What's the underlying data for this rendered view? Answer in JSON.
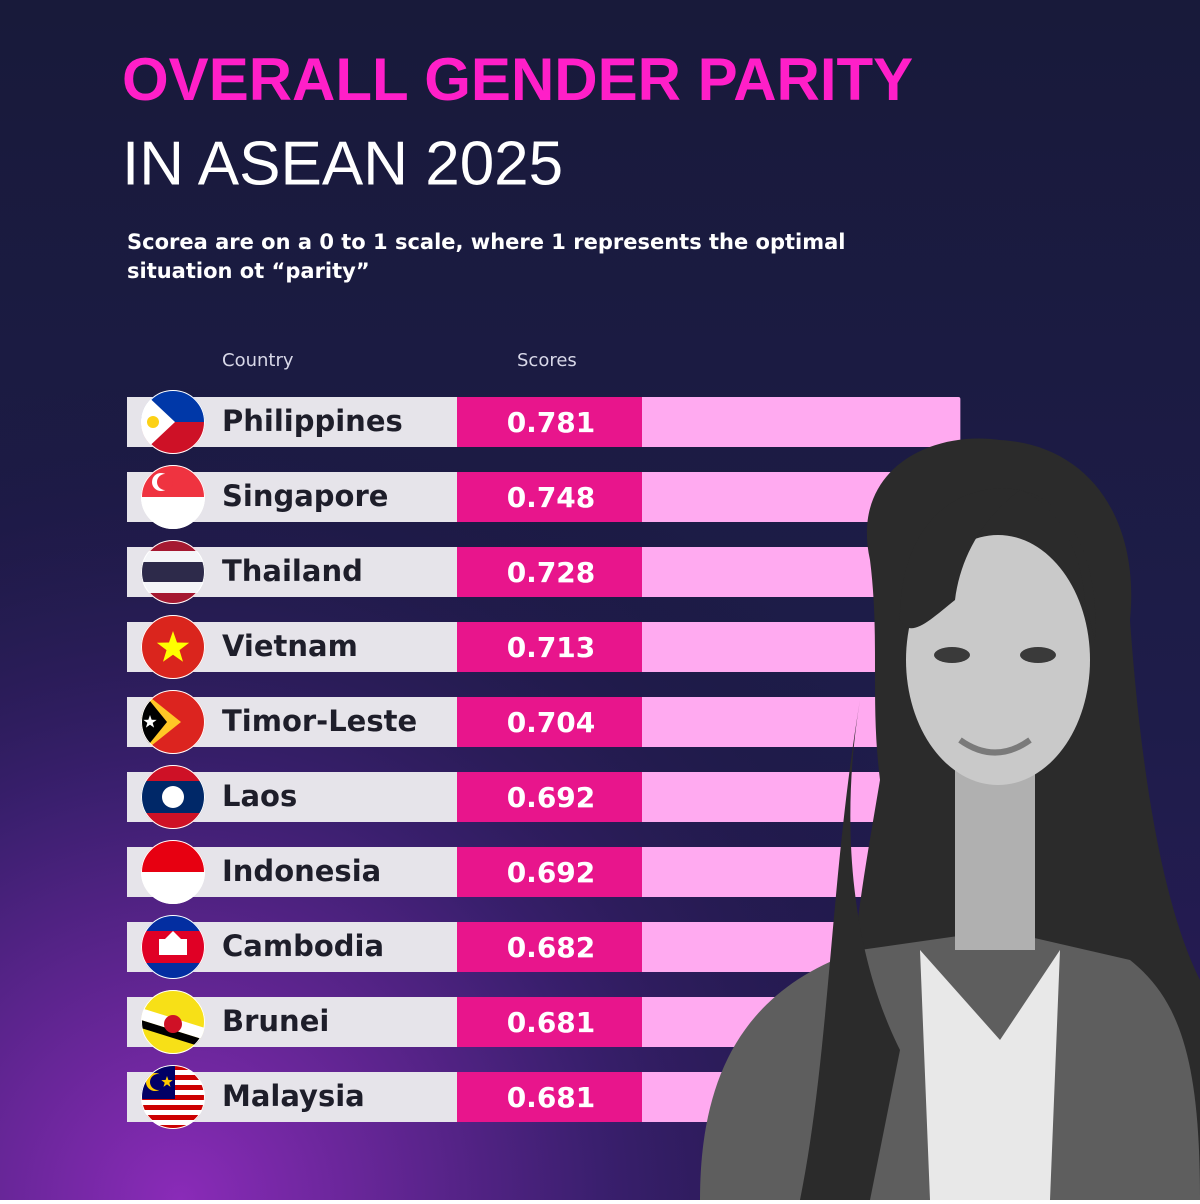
{
  "header": {
    "title": "OVERALL GENDER PARITY",
    "title_line2": "IN ASEAN 2025",
    "subtitle_line1": "Scorea are on a 0 to 1 scale, where 1 represents the optimal",
    "subtitle_line2": "situation ot “parity”"
  },
  "table": {
    "headers": [
      "Country",
      "Scores"
    ],
    "rows": [
      [
        "Philippines",
        0.781
      ],
      [
        "Singapore",
        0.748
      ],
      [
        "Thailand",
        0.728
      ],
      [
        "Vietnam",
        0.713
      ],
      [
        "Timor-Leste",
        0.704
      ],
      [
        "Laos",
        0.692
      ],
      [
        "Indonesia",
        0.692
      ],
      [
        "Cambodia",
        0.682
      ],
      [
        "Brunei",
        0.681
      ],
      [
        "Malaysia",
        0.681
      ]
    ]
  }
}
